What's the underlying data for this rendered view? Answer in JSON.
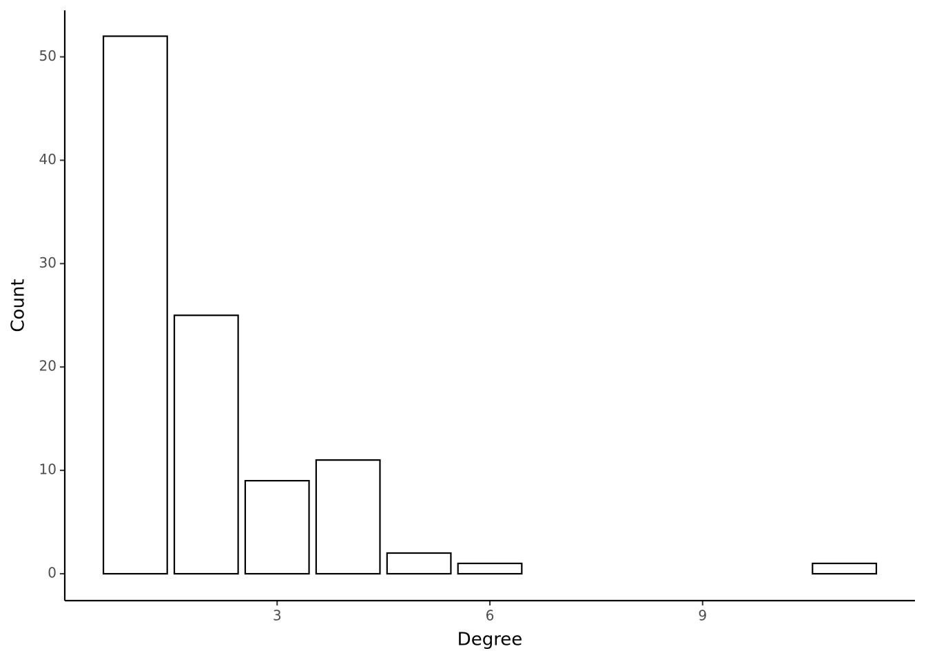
{
  "chart_data": {
    "type": "bar",
    "x_label": "Degree",
    "y_label": "Count",
    "x": [
      1,
      2,
      3,
      4,
      5,
      6,
      11
    ],
    "values": [
      52,
      25,
      9,
      11,
      2,
      1,
      1
    ],
    "color": "#ffffff",
    "edge_color": "#000000",
    "xlim": [
      0.005,
      11.995
    ],
    "xticks": [
      3,
      6,
      9
    ],
    "ylim": [
      -2.6,
      54.5
    ],
    "yticks": [
      0,
      10,
      20,
      30,
      40,
      50
    ],
    "grid": false
  }
}
